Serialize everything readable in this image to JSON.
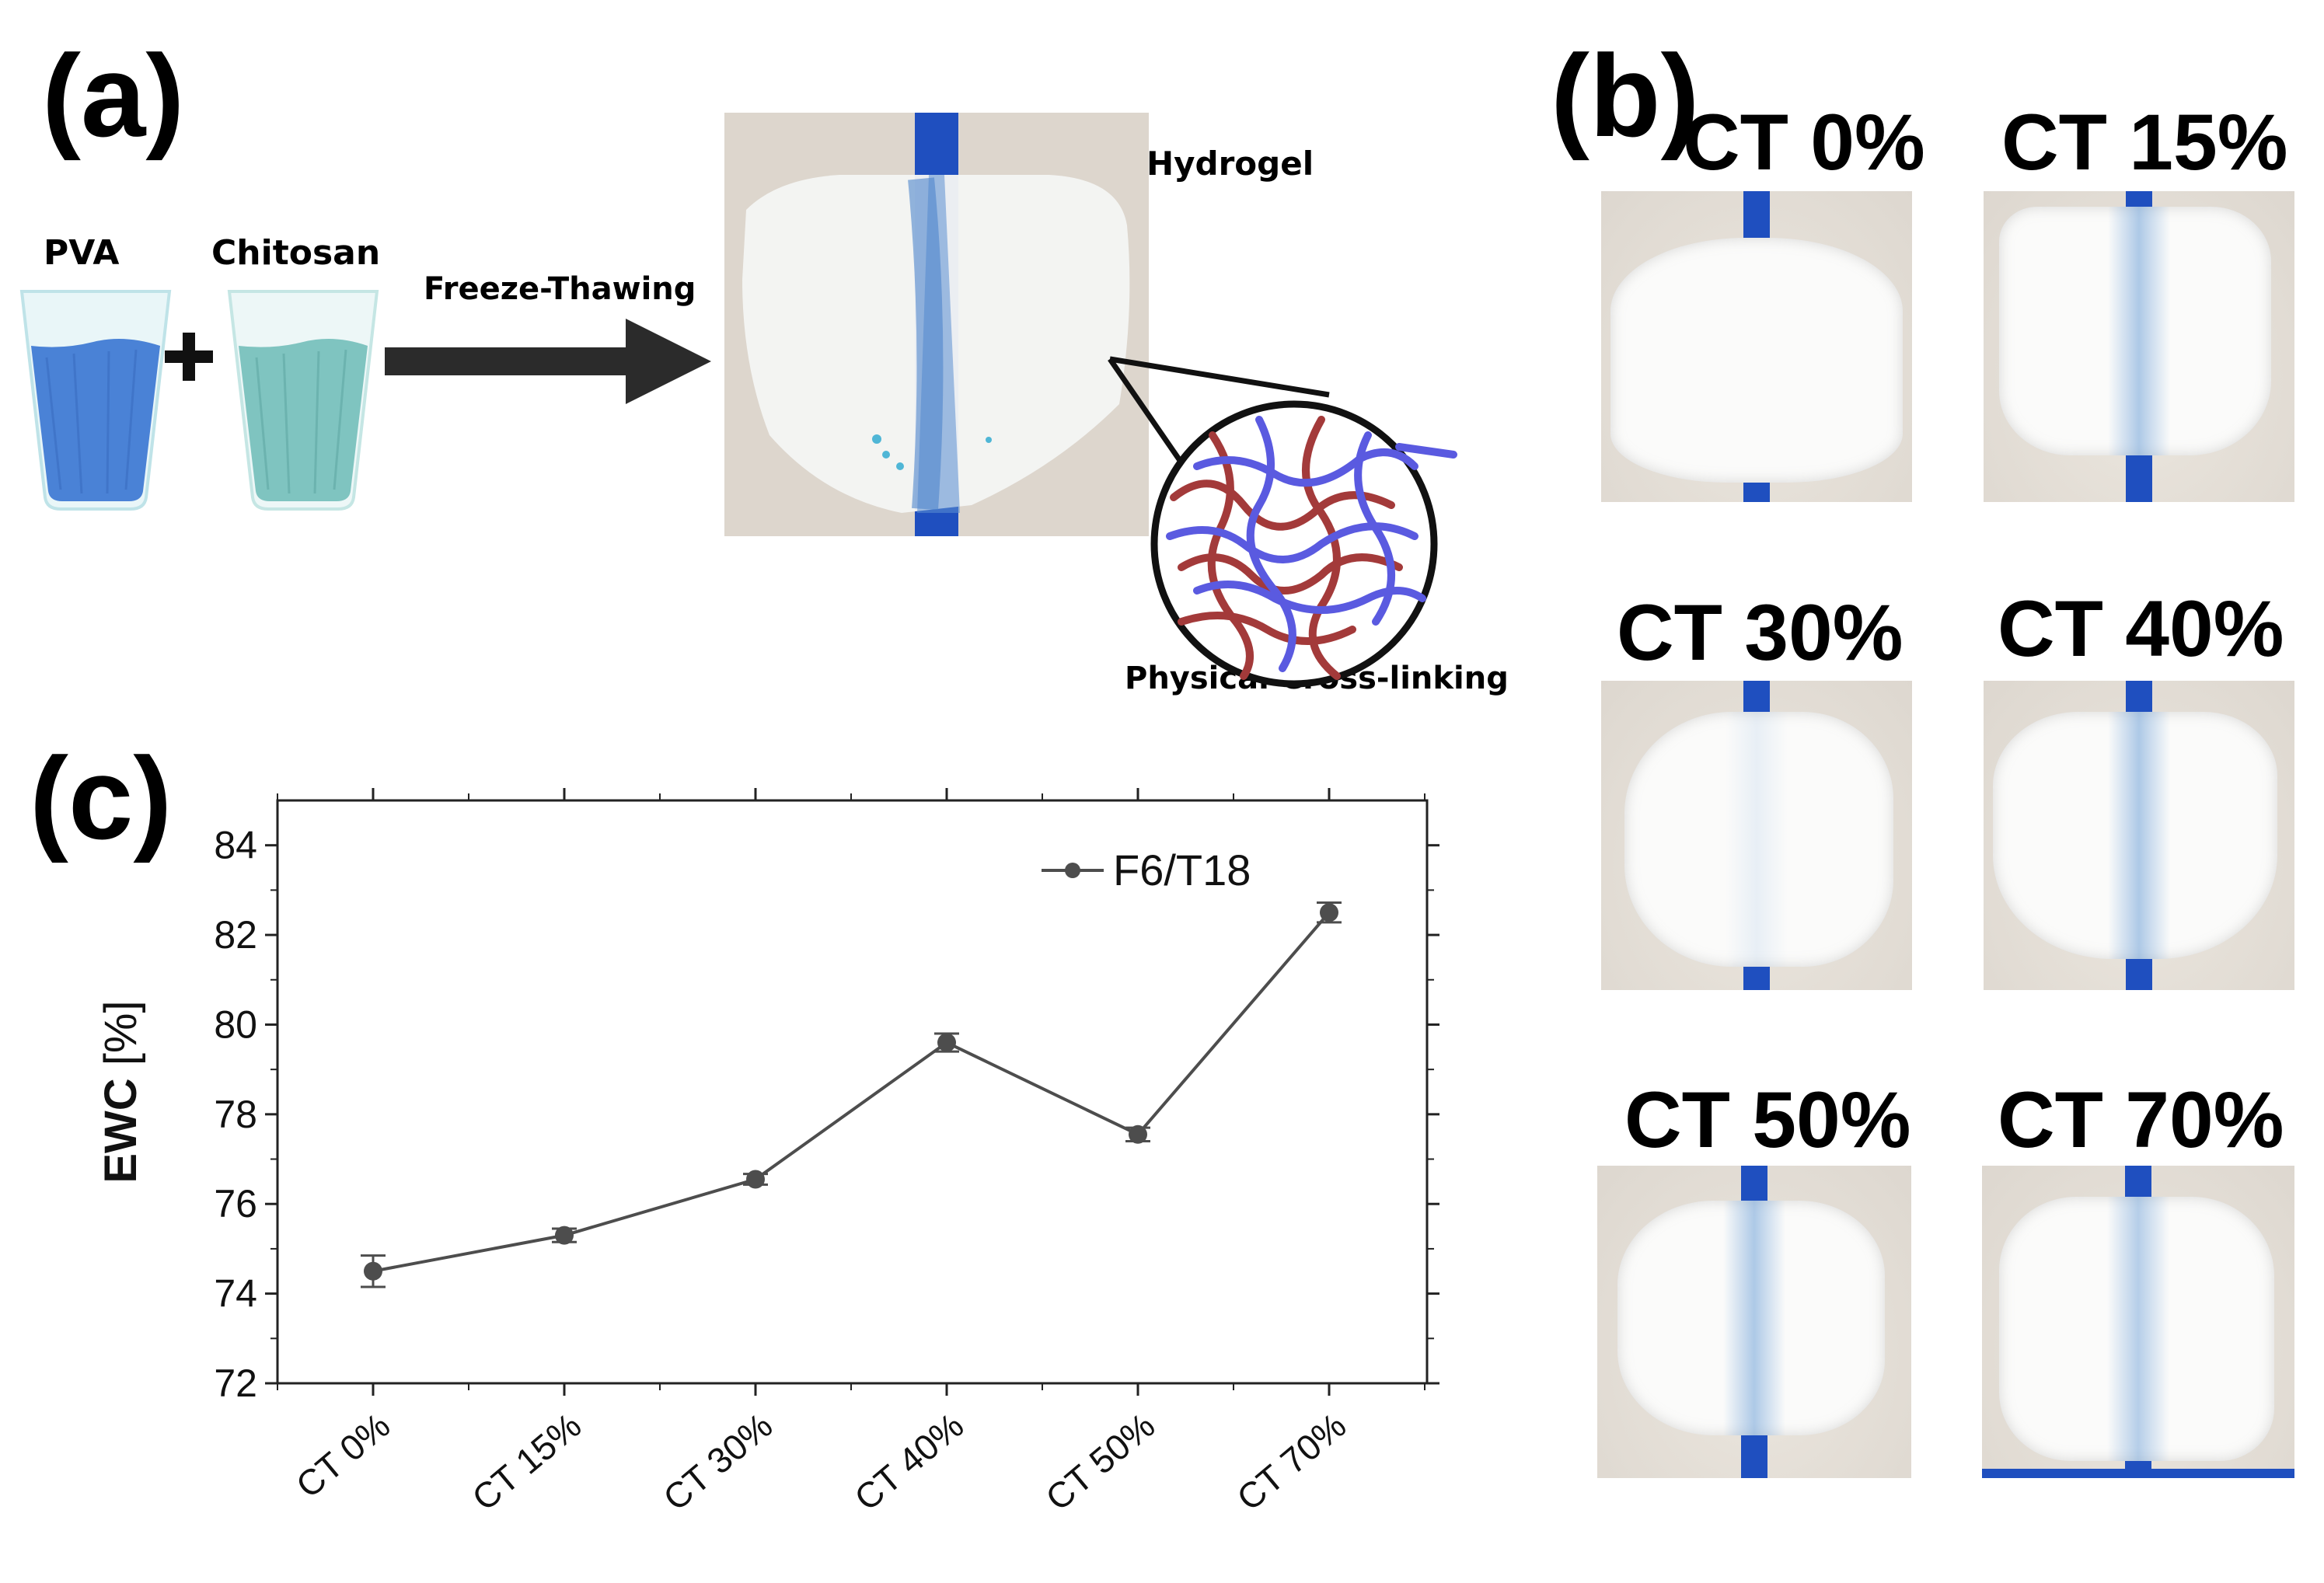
{
  "panel_a": {
    "letter": "(a)",
    "pva_label": "PVA",
    "chitosan_label": "Chitosan",
    "arrow_label": "Freeze-Thawing",
    "hydrogel_label": "Hydrogel",
    "crosslink_label": "Physical Cross-linking",
    "colors": {
      "pva": "#4a82d6",
      "chitosan": "#7fc4c0",
      "arrow": "#2b2b2b",
      "chain_red": "#a33a3a",
      "chain_blue": "#5a5ae0"
    }
  },
  "panel_b": {
    "letter": "(b)",
    "samples": [
      {
        "label": "CT 0%",
        "tinted": false
      },
      {
        "label": "CT 15%",
        "tinted": true
      },
      {
        "label": "CT 30%",
        "tinted": false
      },
      {
        "label": "CT 40%",
        "tinted": true
      },
      {
        "label": "CT 50%",
        "tinted": true
      },
      {
        "label": "CT 70%",
        "tinted": true
      }
    ]
  },
  "panel_c": {
    "letter": "(c)"
  },
  "chart_data": {
    "type": "line",
    "categories": [
      "CT 0%",
      "CT 15%",
      "CT 30%",
      "CT 40%",
      "CT 50%",
      "CT 70%"
    ],
    "series": [
      {
        "name": "F6/T18",
        "values": [
          74.5,
          75.3,
          76.55,
          79.6,
          77.55,
          82.5
        ],
        "errors": [
          0.35,
          0.15,
          0.12,
          0.2,
          0.15,
          0.22
        ]
      }
    ],
    "ylabel_bold": "EWC",
    "ylabel_unit": " [%]",
    "ylim": [
      72,
      85
    ],
    "yticks": [
      72,
      74,
      76,
      78,
      80,
      82,
      84
    ],
    "legend_position": "top-right",
    "line_color": "#4d4d4d",
    "grid": false
  }
}
